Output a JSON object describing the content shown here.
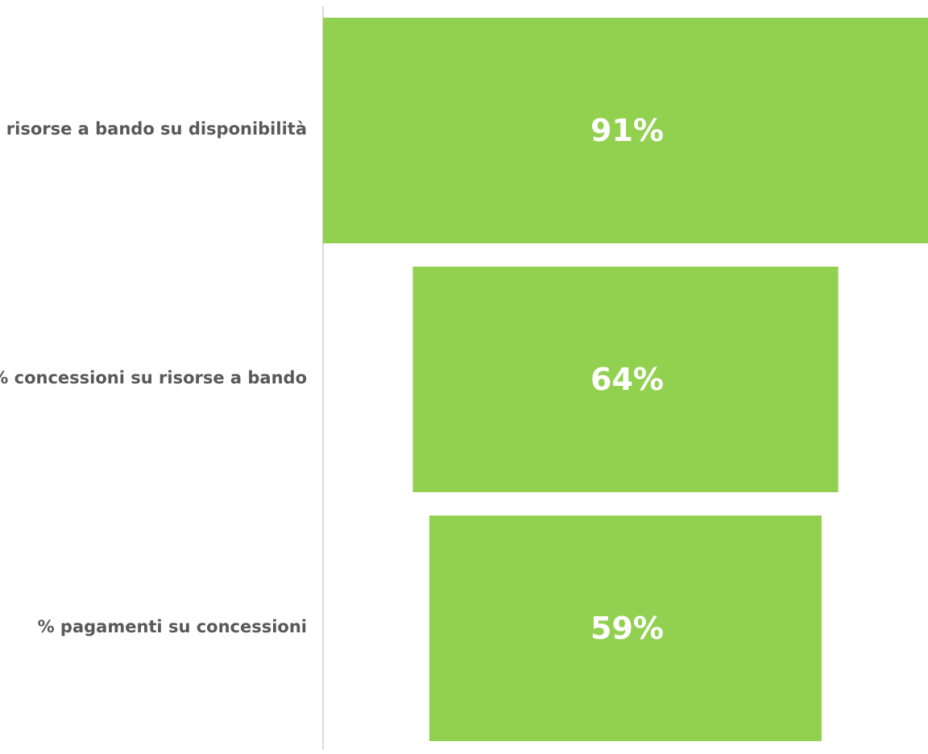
{
  "chart_data": {
    "type": "bar",
    "orientation": "horizontal",
    "style": "funnel",
    "categories": [
      "% risorse a bando su disponibilità",
      "% concessioni su risorse a bando",
      "% pagamenti su concessioni"
    ],
    "values": [
      91,
      64,
      59
    ],
    "data_labels": [
      "91%",
      "64%",
      "59%"
    ],
    "unit": "%",
    "title": "",
    "xlabel": "",
    "ylabel": "",
    "grid": false,
    "legend": "none"
  },
  "colors": {
    "bar": "#92d050",
    "category_text": "#595959",
    "value_text": "#ffffff",
    "axis_line": "#d9d9d9"
  }
}
